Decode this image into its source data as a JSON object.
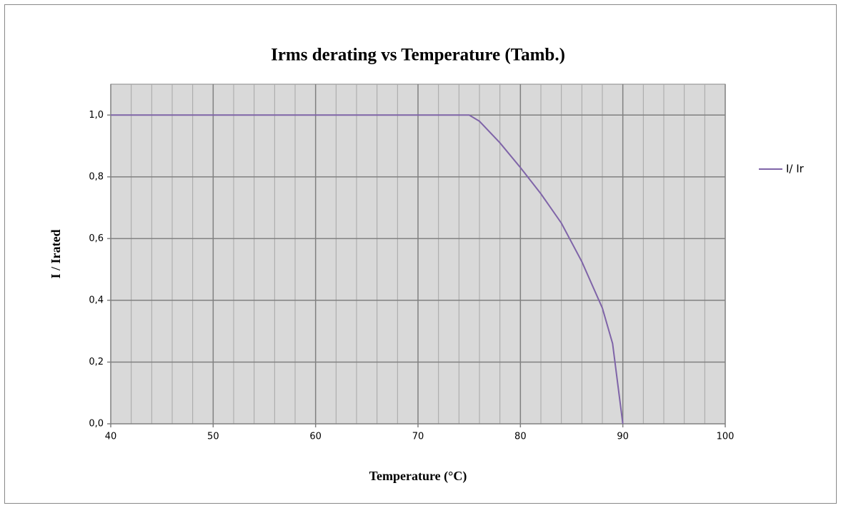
{
  "chart_data": {
    "type": "line",
    "title": "Irms derating vs Temperature (Tamb.)",
    "x_label": "Temperature (°C)",
    "y_label": "I / Irated",
    "x": [
      40,
      75,
      76,
      78,
      80,
      82,
      84,
      86,
      88,
      89,
      90
    ],
    "series": [
      {
        "name": "I/ Ir",
        "color": "#7f64a8",
        "values": [
          1.0,
          1.0,
          0.98,
          0.91,
          0.83,
          0.745,
          0.65,
          0.525,
          0.375,
          0.26,
          0.0
        ]
      }
    ],
    "xlim": [
      40,
      100
    ],
    "xticks": [
      40,
      50,
      60,
      70,
      80,
      90,
      100
    ],
    "xgrid_minor": [
      42,
      44,
      46,
      48,
      52,
      54,
      56,
      58,
      62,
      64,
      66,
      68,
      72,
      74,
      76,
      78,
      82,
      84,
      86,
      88,
      92,
      94,
      96,
      98
    ],
    "ylim": [
      0,
      1.1
    ],
    "yticks": [
      {
        "value": 0,
        "label": "0,0"
      },
      {
        "value": 0.2,
        "label": "0,2"
      },
      {
        "value": 0.4,
        "label": "0,4"
      },
      {
        "value": 0.6,
        "label": "0,6"
      },
      {
        "value": 0.8,
        "label": "0,8"
      },
      {
        "value": 1.0,
        "label": "1,0"
      }
    ],
    "grid": true,
    "legend": "right"
  }
}
